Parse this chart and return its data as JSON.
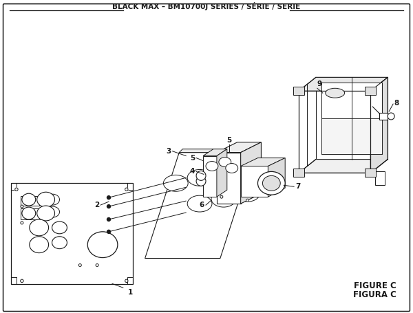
{
  "title": "BLACK MAX – BM10700J SERIES / SÉRIE / SERIE",
  "figure_label": "FIGURE C",
  "figura_label": "FIGURA C",
  "bg_color": "#ffffff",
  "line_color": "#1a1a1a",
  "title_fontsize": 7.5,
  "figure_label_fontsize": 8.5,
  "lw_main": 0.9,
  "lw_thin": 0.6
}
